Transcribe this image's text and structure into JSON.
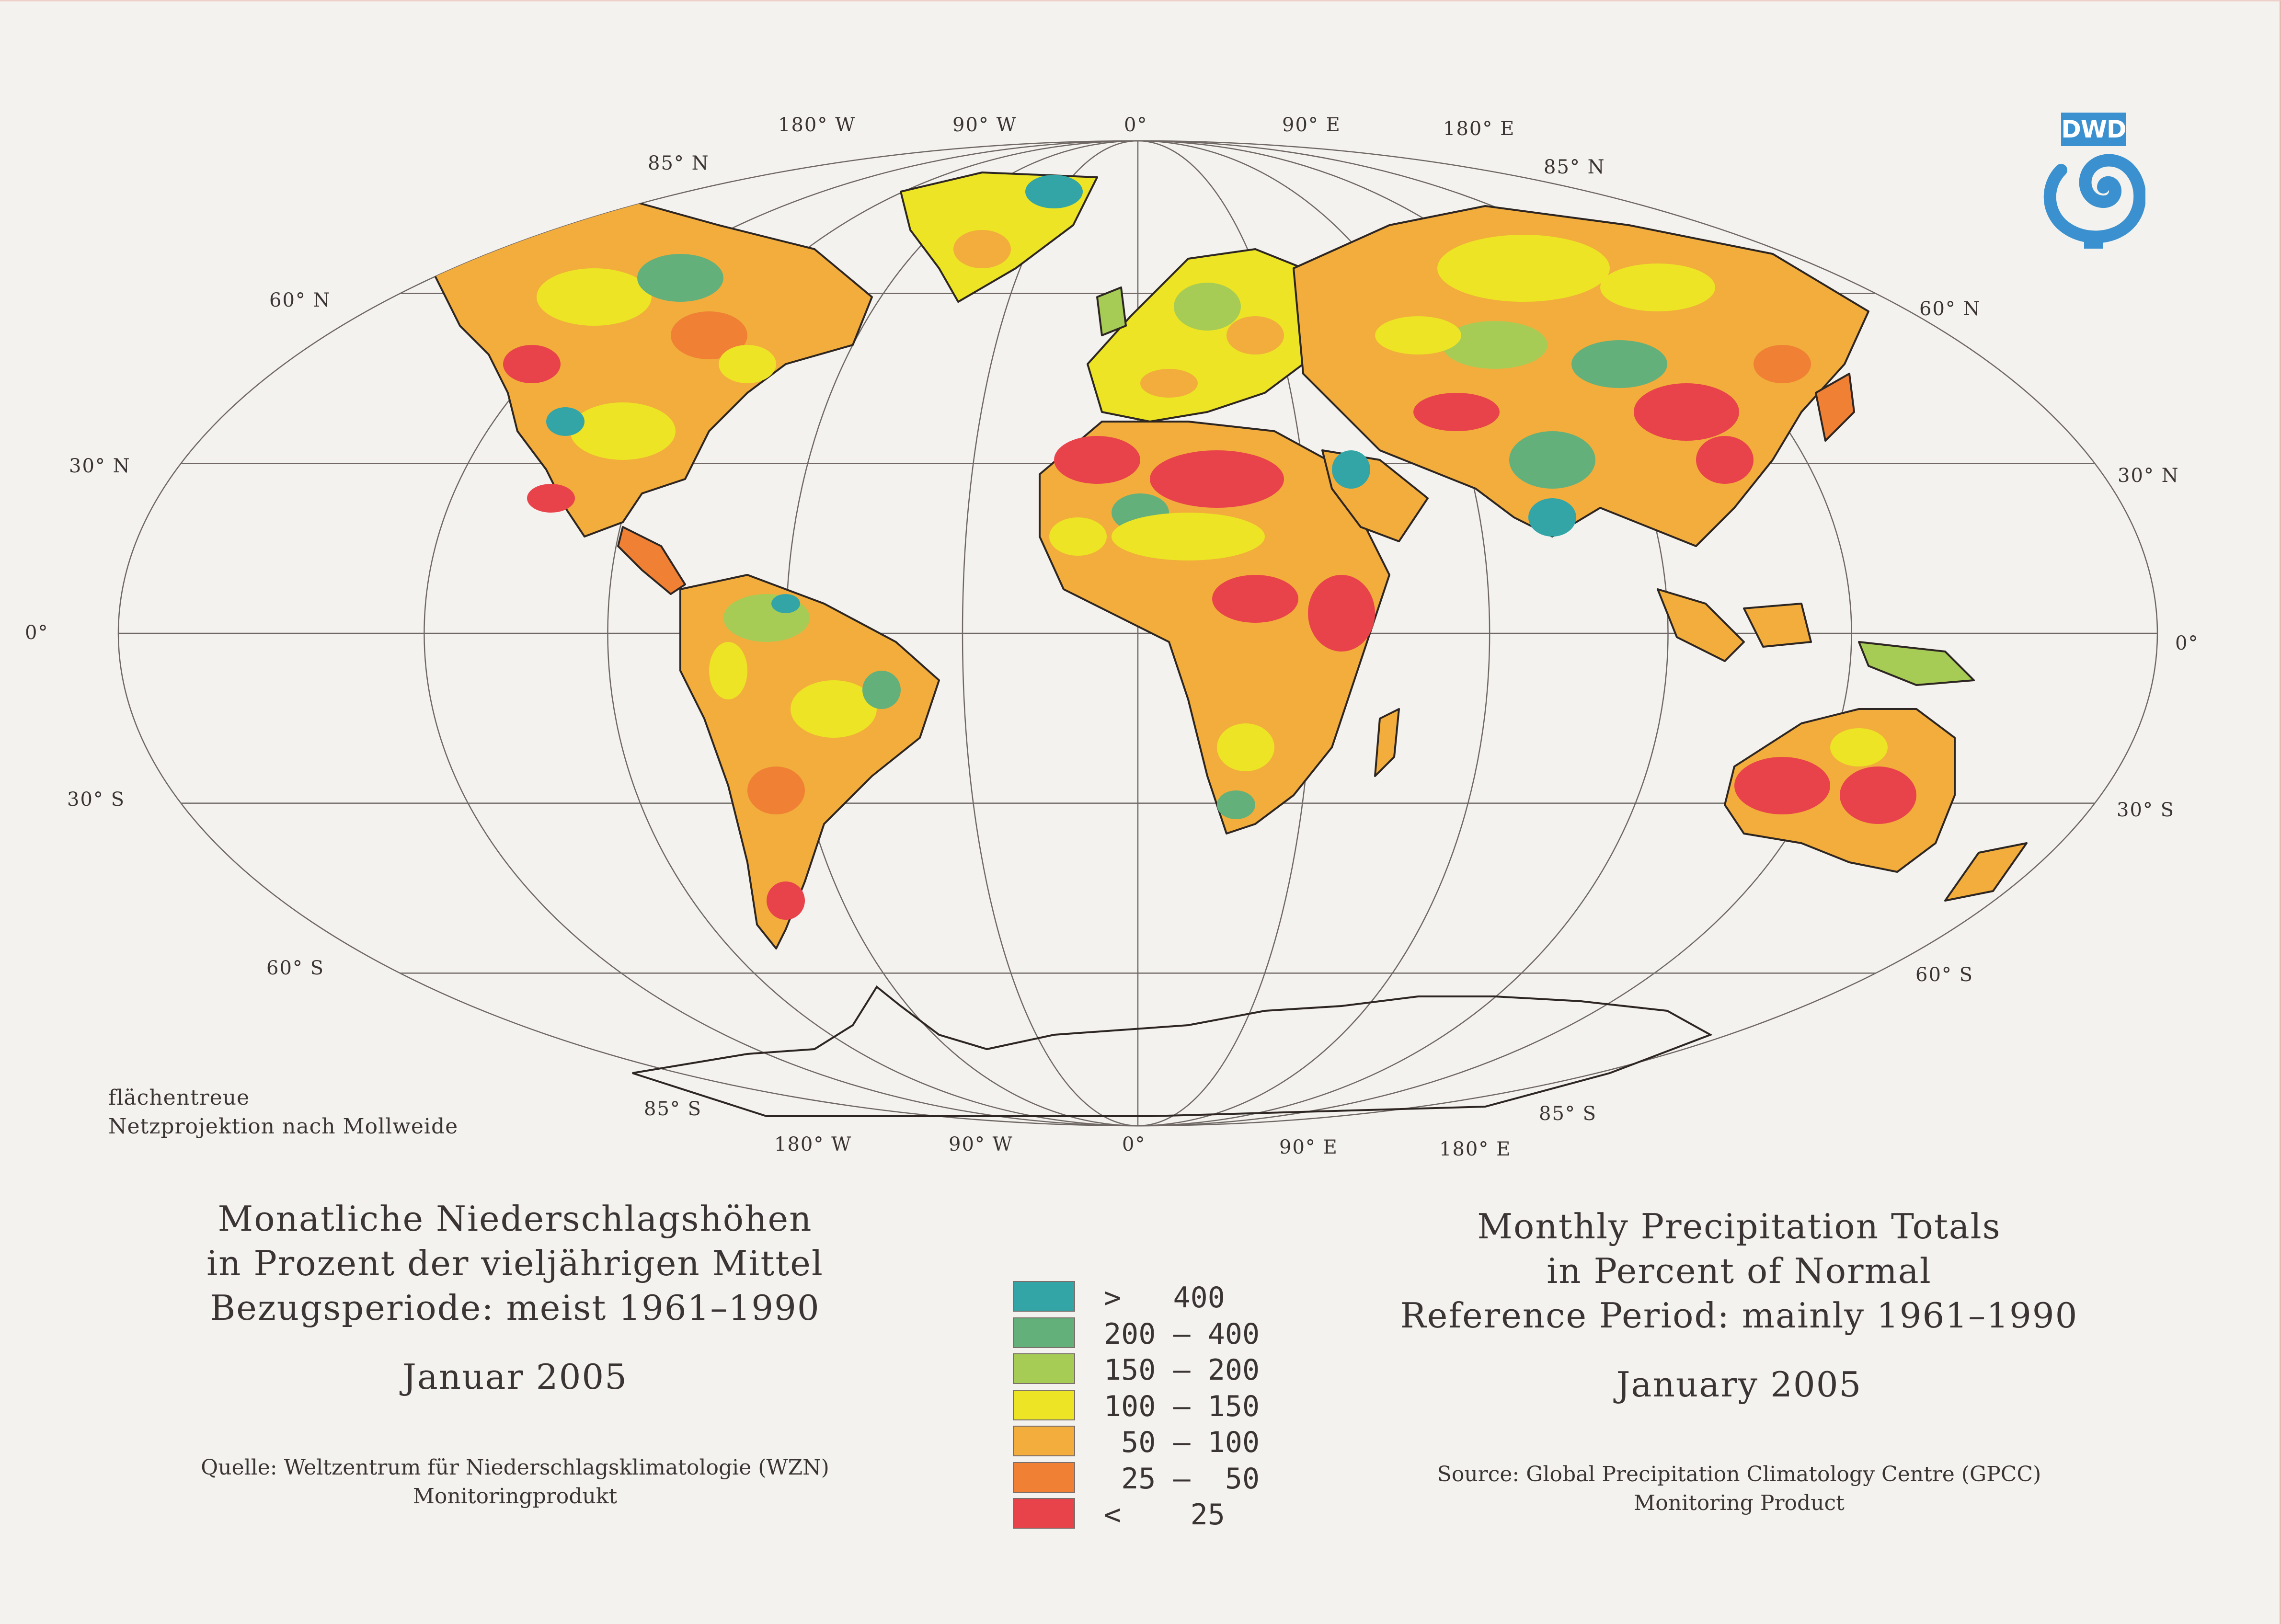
{
  "graticule_labels": {
    "top_longitudes": [
      "180° W",
      "90° W",
      "0°",
      "90° E",
      "180° E"
    ],
    "bottom_longitudes": [
      "180° W",
      "90° W",
      "0°",
      "90° E",
      "180° E"
    ],
    "lat_left": [
      "85° N",
      "60° N",
      "30° N",
      "0°",
      "30° S",
      "60° S",
      "85° S"
    ],
    "lat_right": [
      "85° N",
      "60° N",
      "30° N",
      "0°",
      "30° S",
      "60° S",
      "85° S"
    ]
  },
  "projection_note": {
    "line1": "flächentreue",
    "line2": "Netzprojektion nach Mollweide"
  },
  "title_de": {
    "line1": "Monatliche Niederschlagshöhen",
    "line2": "in Prozent der vieljährigen Mittel",
    "line3": "Bezugsperiode: meist 1961–1990",
    "month": "Januar 2005",
    "source1": "Quelle: Weltzentrum für Niederschlagsklimatologie (WZN)",
    "source2": "Monitoringprodukt"
  },
  "title_en": {
    "line1": "Monthly Precipitation Totals",
    "line2": "in Percent of Normal",
    "line3": "Reference Period: mainly 1961–1990",
    "month": "January 2005",
    "source1": "Source: Global Precipitation Climatology Centre (GPCC)",
    "source2": "Monitoring Product"
  },
  "legend": [
    {
      "range": ">   400",
      "color": "#33a5a6"
    },
    {
      "range": "200 – 400",
      "color": "#63b07a"
    },
    {
      "range": "150 – 200",
      "color": "#a7cc55"
    },
    {
      "range": "100 – 150",
      "color": "#ece424"
    },
    {
      "range": " 50 – 100",
      "color": "#f2ad3c"
    },
    {
      "range": " 25 –  50",
      "color": "#ef8034"
    },
    {
      "range": "<    25",
      "color": "#e8434a"
    }
  ],
  "logo": {
    "text": "DWD",
    "color": "#3b91cf"
  },
  "colors": {
    "background": "#f4f2ef",
    "coastline": "#2d2622",
    "graticule": "#6f6864"
  }
}
